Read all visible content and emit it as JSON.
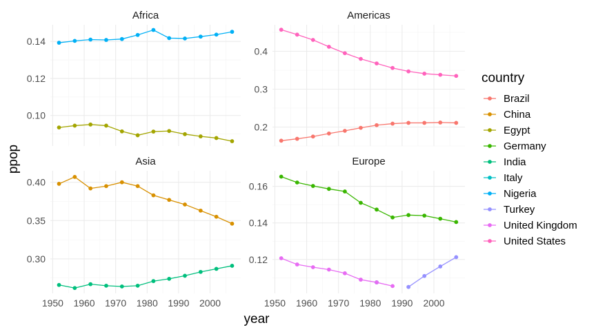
{
  "chart_data": {
    "type": "line",
    "xlabel": "year",
    "ylabel": "ppop",
    "legend": {
      "title": "country",
      "position": "right"
    },
    "countries": [
      {
        "name": "Brazil",
        "color": "#F8766D"
      },
      {
        "name": "China",
        "color": "#D89000"
      },
      {
        "name": "Egypt",
        "color": "#A3A500"
      },
      {
        "name": "Germany",
        "color": "#39B600"
      },
      {
        "name": "India",
        "color": "#00BF7D"
      },
      {
        "name": "Italy",
        "color": "#00BFC4"
      },
      {
        "name": "Nigeria",
        "color": "#00B0F6"
      },
      {
        "name": "Turkey",
        "color": "#9590FF"
      },
      {
        "name": "United Kingdom",
        "color": "#E76BF3"
      },
      {
        "name": "United States",
        "color": "#FF62BC"
      }
    ],
    "x_ticks": [
      1950,
      1960,
      1970,
      1980,
      1990,
      2000
    ],
    "panels": [
      {
        "title": "Africa",
        "xlim": [
          1949.25,
          2009.75
        ],
        "ylim": [
          0.0835,
          0.149
        ],
        "y_ticks": [
          0.1,
          0.12,
          0.14
        ],
        "y_tick_labels": [
          "0.10",
          "0.12",
          "0.14"
        ],
        "series": [
          {
            "country": "Egypt",
            "x": [
              1952,
              1957,
              1962,
              1967,
              1972,
              1977,
              1982,
              1987,
              1992,
              1997,
              2002,
              2007
            ],
            "y": [
              0.0935,
              0.0945,
              0.0951,
              0.0945,
              0.0914,
              0.0893,
              0.0913,
              0.0916,
              0.0899,
              0.0887,
              0.0878,
              0.0861
            ]
          },
          {
            "country": "Nigeria",
            "x": [
              1952,
              1957,
              1962,
              1967,
              1972,
              1977,
              1982,
              1987,
              1992,
              1997,
              2002,
              2007
            ],
            "y": [
              0.1393,
              0.1403,
              0.141,
              0.1408,
              0.1413,
              0.1435,
              0.1462,
              0.1418,
              0.1416,
              0.1426,
              0.1437,
              0.1452
            ]
          }
        ]
      },
      {
        "title": "Americas",
        "xlim": [
          1949.25,
          2009.75
        ],
        "ylim": [
          0.15,
          0.47
        ],
        "y_ticks": [
          0.2,
          0.3,
          0.4
        ],
        "y_tick_labels": [
          "0.2",
          "0.3",
          "0.4"
        ],
        "series": [
          {
            "country": "Brazil",
            "x": [
              1952,
              1957,
              1962,
              1967,
              1972,
              1977,
              1982,
              1987,
              1992,
              1997,
              2002,
              2007
            ],
            "y": [
              0.164,
              0.169,
              0.175,
              0.183,
              0.19,
              0.198,
              0.205,
              0.209,
              0.211,
              0.211,
              0.212,
              0.211
            ]
          },
          {
            "country": "United States",
            "x": [
              1952,
              1957,
              1962,
              1967,
              1972,
              1977,
              1982,
              1987,
              1992,
              1997,
              2002,
              2007
            ],
            "y": [
              0.457,
              0.444,
              0.43,
              0.412,
              0.395,
              0.38,
              0.368,
              0.356,
              0.347,
              0.341,
              0.338,
              0.335
            ]
          }
        ]
      },
      {
        "title": "Asia",
        "xlim": [
          1949.25,
          2009.75
        ],
        "ylim": [
          0.255,
          0.415
        ],
        "y_ticks": [
          0.3,
          0.35,
          0.4
        ],
        "y_tick_labels": [
          "0.30",
          "0.35",
          "0.40"
        ],
        "series": [
          {
            "country": "China",
            "x": [
              1952,
              1957,
              1962,
              1967,
              1972,
              1977,
              1982,
              1987,
              1992,
              1997,
              2002,
              2007
            ],
            "y": [
              0.398,
              0.407,
              0.392,
              0.395,
              0.4,
              0.395,
              0.383,
              0.377,
              0.371,
              0.363,
              0.355,
              0.346
            ]
          },
          {
            "country": "India",
            "x": [
              1952,
              1957,
              1962,
              1967,
              1972,
              1977,
              1982,
              1987,
              1992,
              1997,
              2002,
              2007
            ],
            "y": [
              0.266,
              0.262,
              0.267,
              0.265,
              0.264,
              0.265,
              0.271,
              0.274,
              0.278,
              0.283,
              0.287,
              0.291
            ]
          }
        ]
      },
      {
        "title": "Europe",
        "xlim": [
          1949.25,
          2009.75
        ],
        "ylim": [
          0.1015,
          0.1685
        ],
        "y_ticks": [
          0.12,
          0.14,
          0.16
        ],
        "y_tick_labels": [
          "0.12",
          "0.14",
          "0.16"
        ],
        "series": [
          {
            "country": "Germany",
            "x": [
              1952,
              1957,
              1962,
              1967,
              1972,
              1977,
              1982,
              1987,
              1992,
              1997,
              2002,
              2007
            ],
            "y": [
              0.1653,
              0.1621,
              0.1602,
              0.1586,
              0.1572,
              0.151,
              0.1473,
              0.143,
              0.1443,
              0.144,
              0.1423,
              0.1405
            ]
          },
          {
            "country": "United Kingdom",
            "x": [
              1952,
              1957,
              1962,
              1967,
              1972,
              1977,
              1982
            ],
            "y": [
              0.1207,
              0.1173,
              0.1158,
              0.1145,
              0.1125,
              0.109,
              0.1075
            ]
          },
          {
            "country": "Italy",
            "x": [
              1982
            ],
            "y": [
              0.1075
            ]
          },
          {
            "country": "United Kingdom",
            "x": [
              1982,
              1987
            ],
            "y": [
              0.1075,
              0.1055
            ]
          },
          {
            "country": "Turkey",
            "x": [
              1992,
              1997,
              2002,
              2007
            ],
            "y": [
              0.105,
              0.111,
              0.1162,
              0.1213
            ]
          }
        ]
      }
    ]
  }
}
